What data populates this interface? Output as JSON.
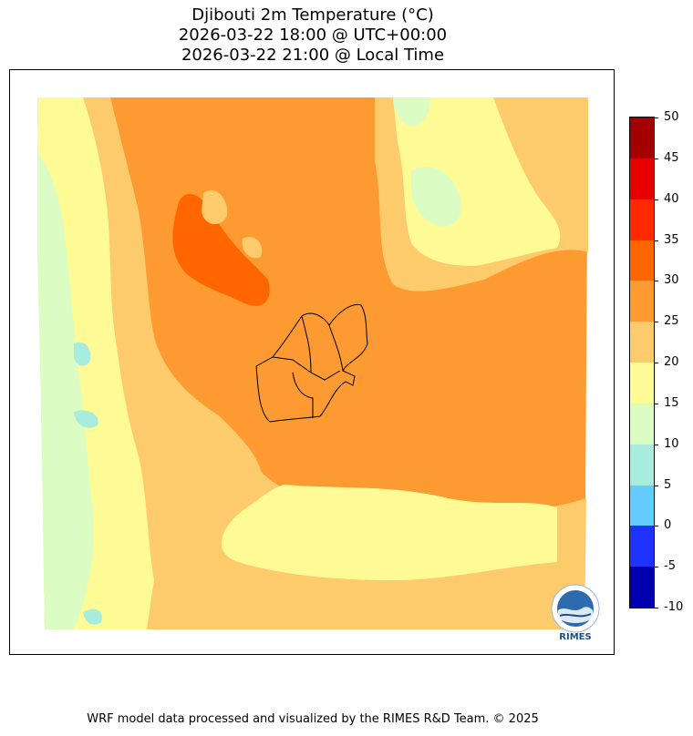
{
  "title": {
    "line1": "Djibouti 2m Temperature (°C)",
    "line2": "2026-03-22 18:00 @ UTC+00:00",
    "line3": "2026-03-22 21:00 @ Local Time"
  },
  "colorbar": {
    "ticks": [
      "50",
      "45",
      "40",
      "35",
      "30",
      "25",
      "20",
      "15",
      "10",
      "5",
      "0",
      "-5",
      "-10"
    ],
    "levels_from_top": [
      {
        "range": "45-50",
        "color": "#a50000"
      },
      {
        "range": "40-45",
        "color": "#e80000"
      },
      {
        "range": "35-40",
        "color": "#ff2a00"
      },
      {
        "range": "30-35",
        "color": "#ff6600"
      },
      {
        "range": "25-30",
        "color": "#fd9a32"
      },
      {
        "range": "20-25",
        "color": "#fdcb6b"
      },
      {
        "range": "15-20",
        "color": "#fefa96"
      },
      {
        "range": "10-15",
        "color": "#dbfdc3"
      },
      {
        "range": "5-10",
        "color": "#a8ecde"
      },
      {
        "range": "0-5",
        "color": "#66ccff"
      },
      {
        "range": "-5-0",
        "color": "#1f33ff"
      },
      {
        "range": "-10--5",
        "color": "#0000b0"
      }
    ]
  },
  "logo": {
    "text": "RIMES"
  },
  "footer": "WRF model data processed and visualized by the RIMES R&D Team. © 2025"
}
